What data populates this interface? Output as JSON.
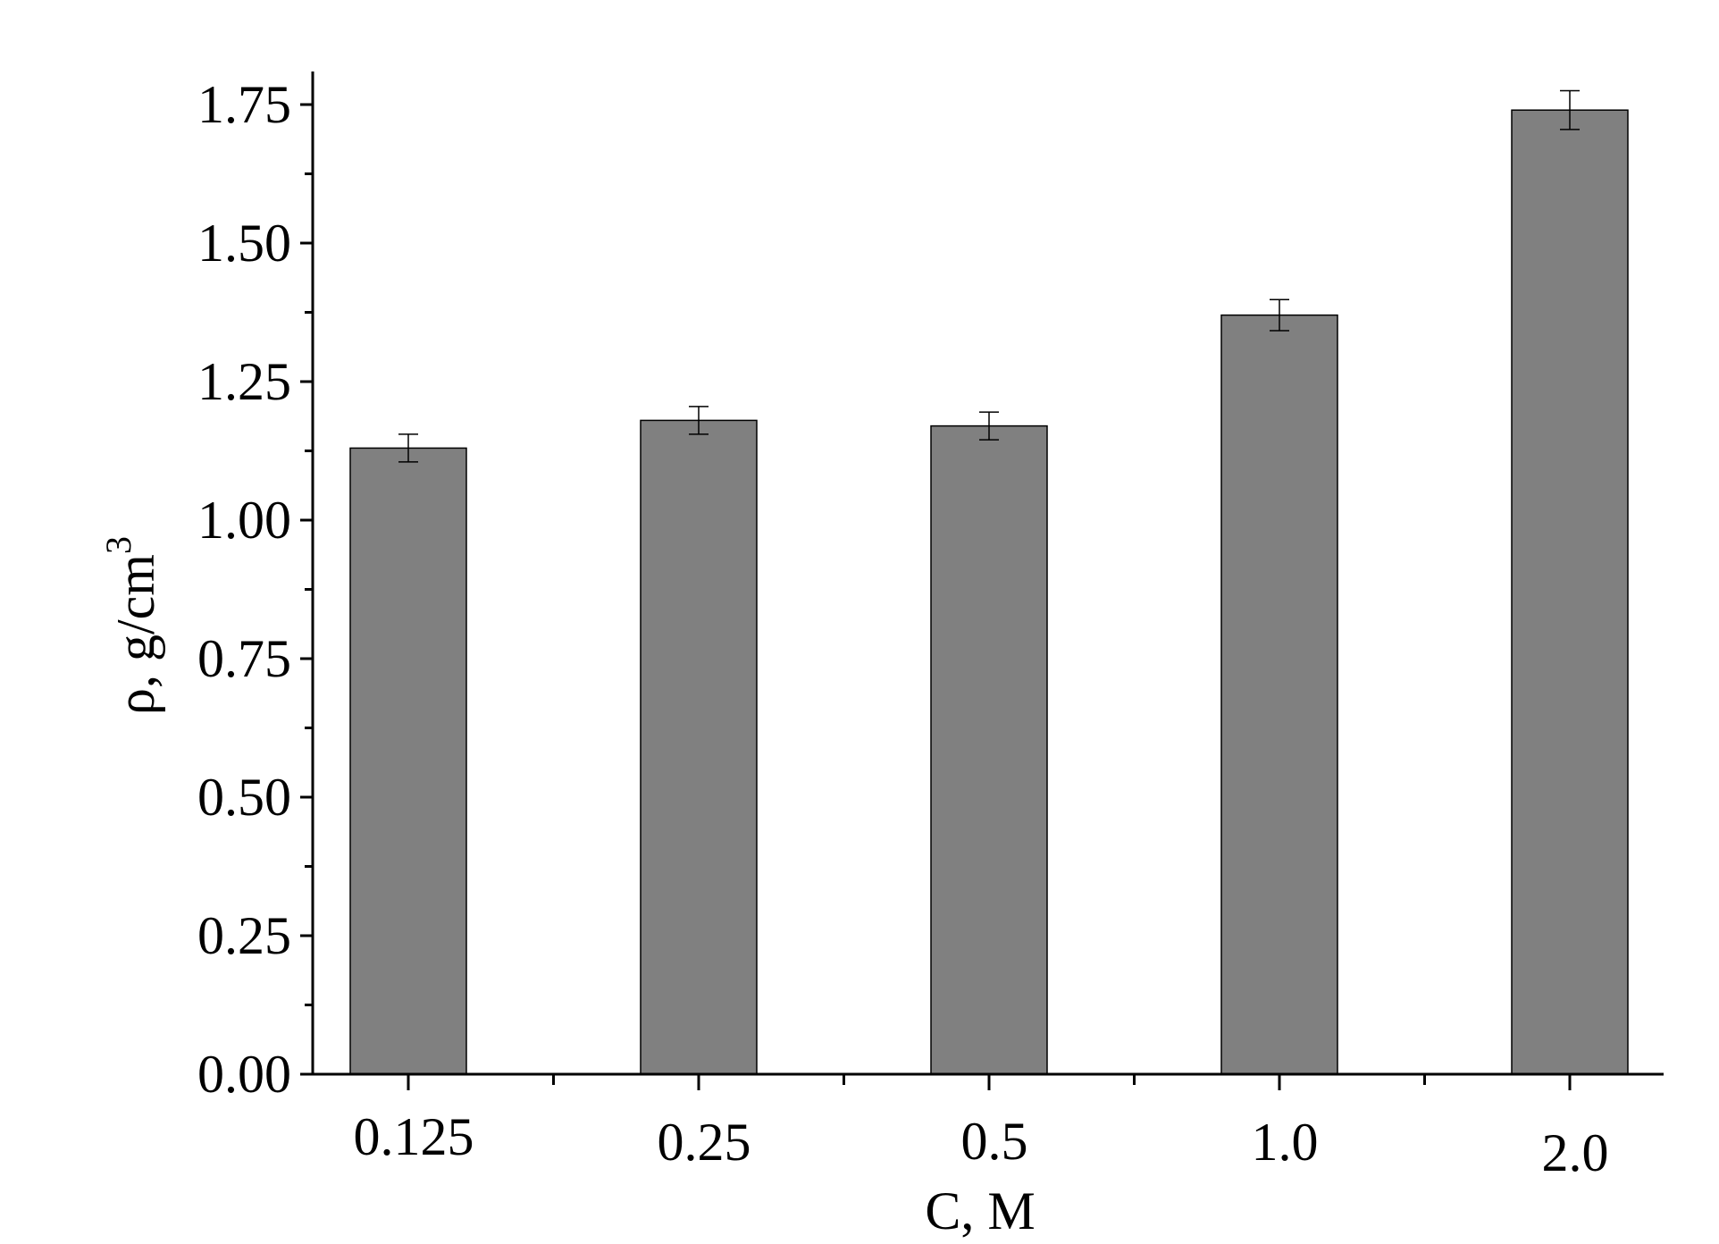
{
  "chart_data": {
    "type": "bar",
    "xlabel": "C, M",
    "ylabel_main": "ρ, g/cm",
    "ylabel_sup": "3",
    "categories": [
      "0.125",
      "0.25",
      "0.5",
      "1.0",
      "2.0"
    ],
    "values": [
      1.13,
      1.18,
      1.17,
      1.37,
      1.74
    ],
    "errors": [
      0.025,
      0.025,
      0.025,
      0.028,
      0.035
    ],
    "ylim": [
      0,
      1.75
    ],
    "yticks": [
      "0.00",
      "0.25",
      "0.50",
      "0.75",
      "1.00",
      "1.25",
      "1.50",
      "1.75"
    ],
    "grid": false,
    "bar_color": "#808080"
  }
}
